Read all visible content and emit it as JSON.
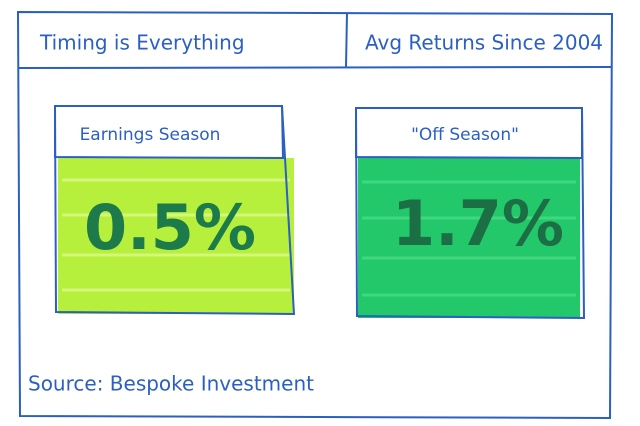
{
  "header": {
    "title": "Timing is Everything",
    "subtitle": "Avg Returns Since 2004"
  },
  "panels": [
    {
      "label": "Earnings Season",
      "value": "0.5%"
    },
    {
      "label": "\"Off Season\"",
      "value": "1.7%"
    }
  ],
  "source": "Source: Bespoke Investment"
}
